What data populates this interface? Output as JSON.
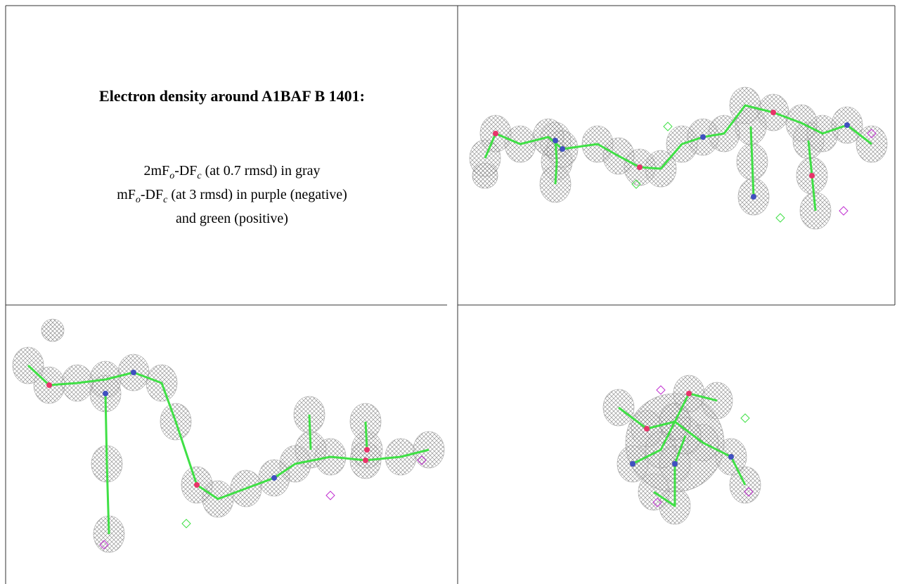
{
  "header": {
    "title": "Electron density around A1BAF B 1401:"
  },
  "legend": {
    "lines": [
      [
        {
          "text": "2mF"
        },
        {
          "text": "o",
          "sub": true
        },
        {
          "text": "-DF"
        },
        {
          "text": "c",
          "sub": true
        },
        {
          "text": " (at 0.7 rmsd) in gray"
        }
      ],
      [
        {
          "text": "mF"
        },
        {
          "text": "o",
          "sub": true
        },
        {
          "text": "-DF"
        },
        {
          "text": "c",
          "sub": true
        },
        {
          "text": " (at 3 rmsd) in purple (negative)"
        }
      ],
      [
        {
          "text": "and green (positive)"
        }
      ]
    ]
  }
}
